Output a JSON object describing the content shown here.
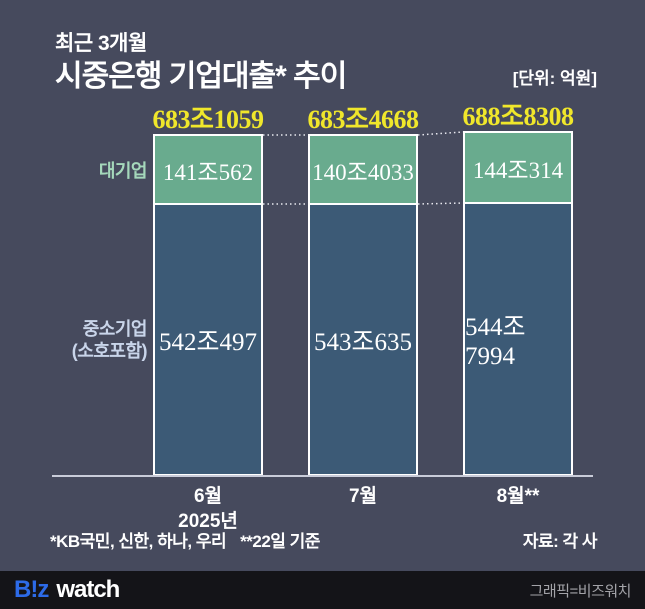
{
  "header": {
    "kicker": "최근 3개월",
    "title": "시중은행 기업대출* 추이",
    "unit": "[단위: 억원]"
  },
  "chart_data": {
    "type": "bar",
    "stacked": true,
    "title": "최근 3개월 시중은행 기업대출 추이",
    "unit_label": "억원",
    "categories": [
      "6월",
      "7월",
      "8월**"
    ],
    "year_label": "2025년",
    "series": [
      {
        "name": "대기업",
        "values_trillion_krw": [
          141.0562,
          140.4033,
          144.0314
        ],
        "display": [
          "141조562",
          "140조4033",
          "144조314"
        ],
        "color": "#69ab8e"
      },
      {
        "name": "중소기업 (소호포함)",
        "values_trillion_krw": [
          542.0497,
          543.0635,
          544.7994
        ],
        "display": [
          "542조497",
          "543조635",
          "544조7994"
        ],
        "color": "#3c5a76"
      }
    ],
    "totals": {
      "values_trillion_krw": [
        683.1059,
        683.4668,
        688.8308
      ],
      "display": [
        "683조1059",
        "683조4668",
        "688조8308"
      ],
      "color": "#f0e72b"
    },
    "legend": {
      "large_corp": "대기업",
      "sme_line1": "중소기업",
      "sme_line2": "(소호포함)"
    },
    "legend_position": "left",
    "grid": false
  },
  "footer": {
    "note1": "*KB국민, 신한, 하나, 우리",
    "note2": "**22일 기준",
    "source": "자료: 각 사"
  },
  "branding": {
    "logo_b": "B!z",
    "logo_watch": "watch",
    "credit": "그래픽=비즈워치"
  },
  "colors": {
    "background": "#464a5d",
    "large_corp_segment": "#69ab8e",
    "sme_segment": "#3c5a76",
    "total_text": "#f0e72b",
    "large_corp_label": "#a5d8bb",
    "sme_label": "#c9d5ea",
    "axis_line": "#c9ccd9",
    "footer_bar": "#141418",
    "logo_blue": "#2d6be8"
  }
}
